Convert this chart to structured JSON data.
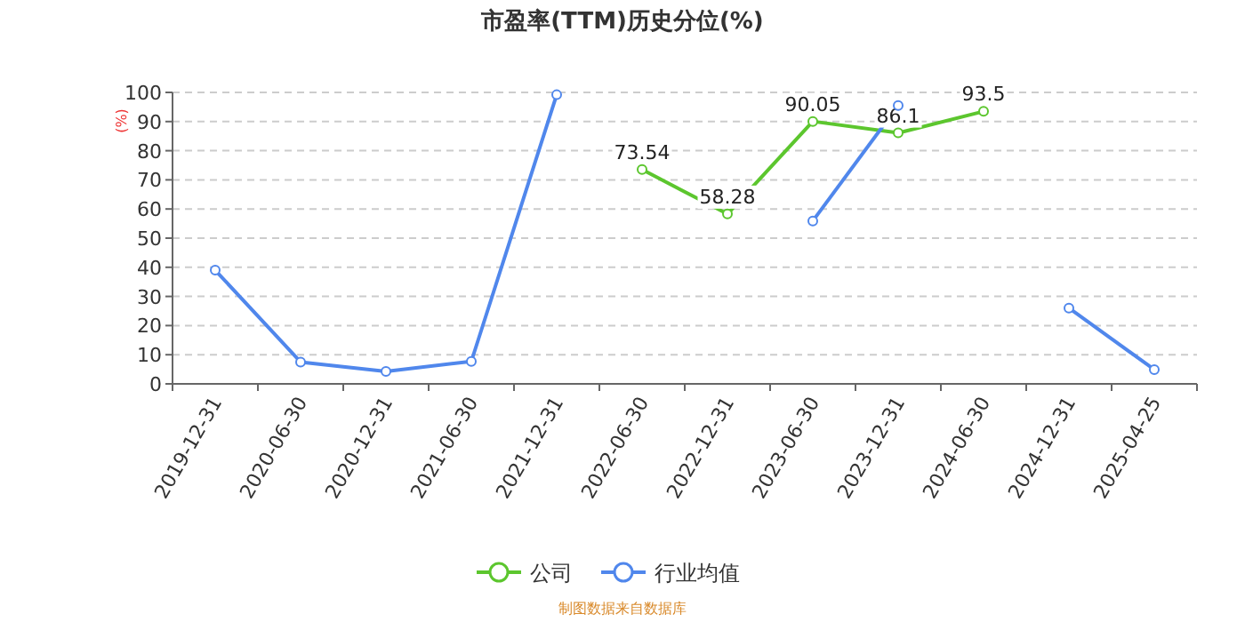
{
  "chart_data": {
    "type": "line",
    "title": "市盈率(TTM)历史分位(%)",
    "ylabel": "(%)",
    "categories": [
      "2019-12-31",
      "2020-06-30",
      "2020-12-31",
      "2021-06-30",
      "2021-12-31",
      "2022-06-30",
      "2022-12-31",
      "2023-06-30",
      "2023-12-31",
      "2024-06-30",
      "2024-12-31",
      "2025-04-25"
    ],
    "series": [
      {
        "name": "公司",
        "color": "#5cc62e",
        "values": [
          null,
          null,
          null,
          null,
          null,
          73.54,
          58.28,
          90.05,
          86.1,
          93.5,
          null,
          null
        ],
        "value_labels": [
          null,
          null,
          null,
          null,
          null,
          "73.54",
          "58.28",
          "90.05",
          "86.1",
          "93.5",
          null,
          null
        ]
      },
      {
        "name": "行业均值",
        "color": "#5087ec",
        "values": [
          39,
          7.5,
          4.3,
          7.7,
          99.2,
          null,
          null,
          55.9,
          95.5,
          null,
          26,
          4.9
        ]
      }
    ],
    "ylim": [
      0,
      100
    ],
    "yticks": [
      0,
      10,
      20,
      30,
      40,
      50,
      60,
      70,
      80,
      90,
      100
    ],
    "grid": "y",
    "legend": "bottom",
    "marker": "circle",
    "line_style": "solid",
    "annotations": [
      "制图数据来自数据库"
    ]
  }
}
